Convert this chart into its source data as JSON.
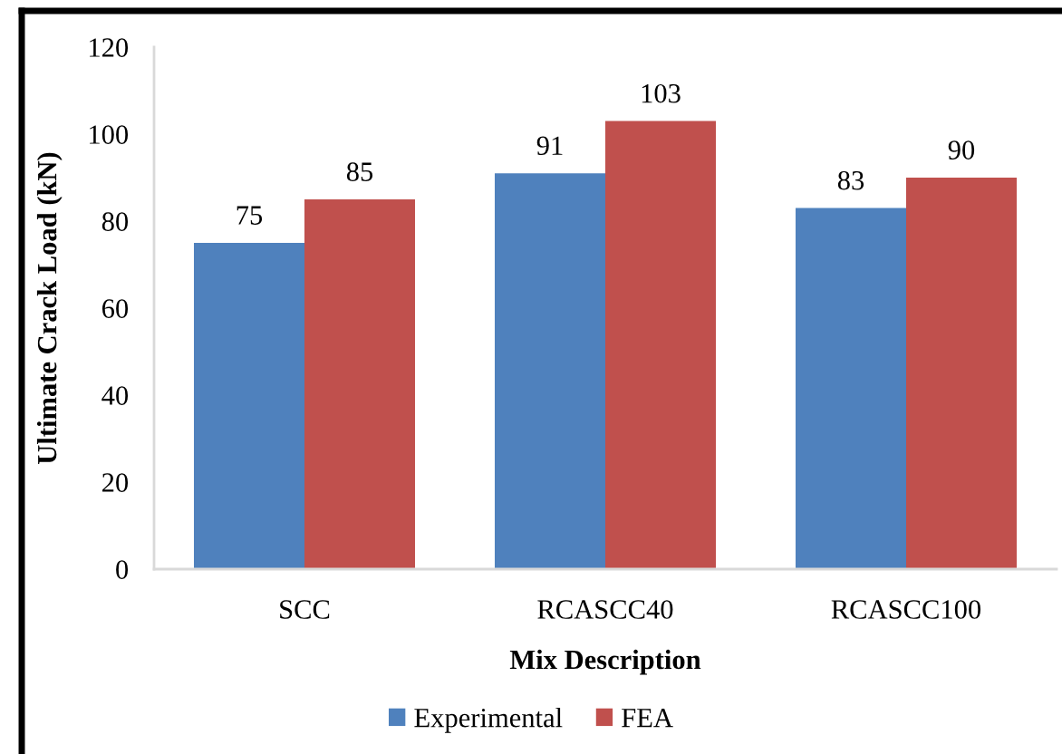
{
  "chart_data": {
    "type": "bar",
    "xlabel": "Mix Description",
    "ylabel": "Ultimate Crack Load (kN)",
    "categories": [
      "SCC",
      "RCASCC40",
      "RCASCC100"
    ],
    "series": [
      {
        "name": "Experimental",
        "color": "#4f81bd",
        "values": [
          75,
          91,
          83
        ]
      },
      {
        "name": "FEA",
        "color": "#c0504d",
        "values": [
          85,
          103,
          90
        ]
      }
    ],
    "ylim": [
      0,
      120
    ],
    "yticks": [
      0,
      20,
      40,
      60,
      80,
      100,
      120
    ],
    "grid": false,
    "legend": "bottom",
    "data_labels": true
  }
}
